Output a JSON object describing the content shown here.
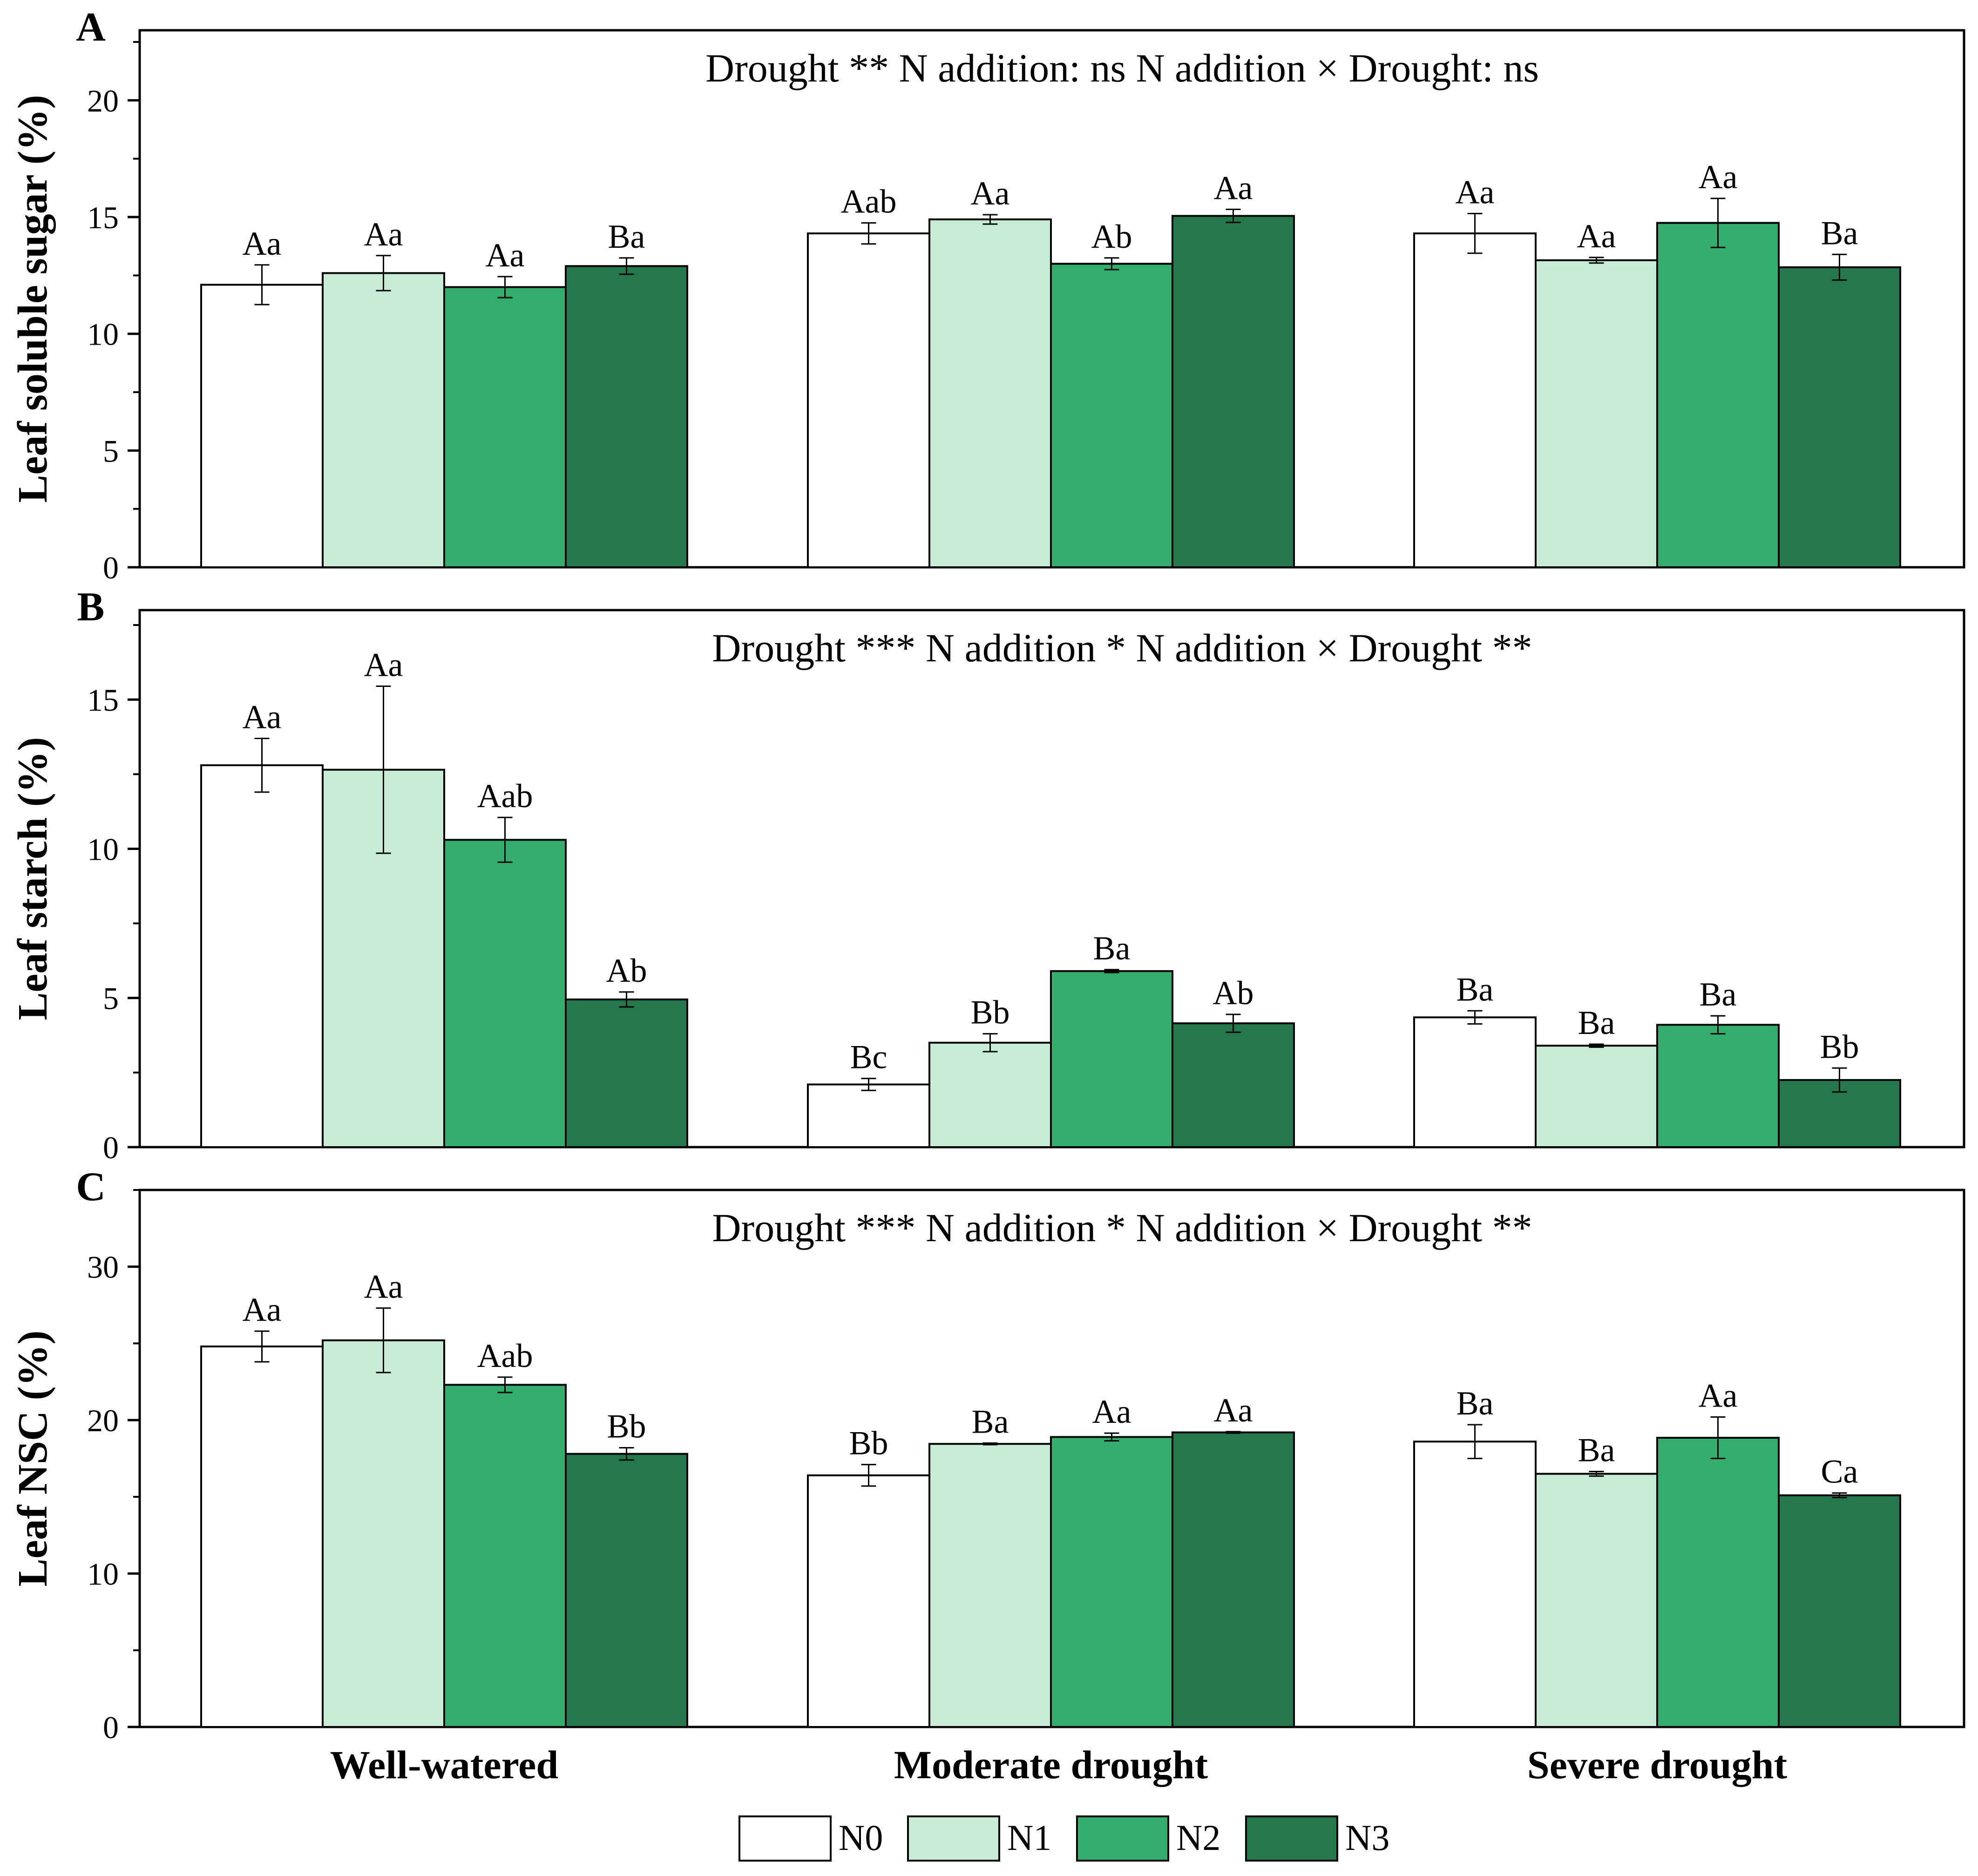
{
  "chart_data": [
    {
      "type": "bar",
      "panel": "A",
      "ylabel": "Leaf soluble sugar (%)",
      "stats": "Drought **    N addition: ns    N addition × Drought: ns",
      "ylim": [
        0,
        23
      ],
      "yticks": [
        0,
        5,
        10,
        15,
        20
      ],
      "ytick_labels": [
        "0",
        "5",
        "10",
        "15",
        "20"
      ],
      "minor_yticks": [
        2.5,
        7.5,
        12.5,
        17.5,
        22.5
      ],
      "categories": [
        "Well-watered",
        "Moderate drought",
        "Severe drought"
      ],
      "series": [
        {
          "name": "N0",
          "values": [
            12.1,
            14.3,
            14.3
          ],
          "errors": [
            0.85,
            0.45,
            0.85
          ],
          "labels": [
            "Aa",
            "Aab",
            "Aa"
          ]
        },
        {
          "name": "N1",
          "values": [
            12.6,
            14.9,
            13.15
          ],
          "errors": [
            0.75,
            0.2,
            0.12
          ],
          "labels": [
            "Aa",
            "Aa",
            "Aa"
          ]
        },
        {
          "name": "N2",
          "values": [
            12.0,
            13.0,
            14.75
          ],
          "errors": [
            0.45,
            0.25,
            1.05
          ],
          "labels": [
            "Aa",
            "Ab",
            "Aa"
          ]
        },
        {
          "name": "N3",
          "values": [
            12.9,
            15.05,
            12.85
          ],
          "errors": [
            0.35,
            0.28,
            0.55
          ],
          "labels": [
            "Ba",
            "Aa",
            "Ba"
          ]
        }
      ]
    },
    {
      "type": "bar",
      "panel": "B",
      "ylabel": "Leaf starch (%)",
      "stats": "Drought ***    N addition *    N addition × Drought **",
      "ylim": [
        0,
        18
      ],
      "yticks": [
        0,
        5,
        10,
        15
      ],
      "ytick_labels": [
        "0",
        "5",
        "10",
        "15"
      ],
      "minor_yticks": [
        2.5,
        7.5,
        12.5,
        17.5
      ],
      "categories": [
        "Well-watered",
        "Moderate drought",
        "Severe drought"
      ],
      "series": [
        {
          "name": "N0",
          "values": [
            12.8,
            2.1,
            4.35
          ],
          "errors": [
            0.9,
            0.2,
            0.22
          ],
          "labels": [
            "Aa",
            "Bc",
            "Ba"
          ]
        },
        {
          "name": "N1",
          "values": [
            12.65,
            3.5,
            3.4
          ],
          "errors": [
            2.8,
            0.3,
            0.05
          ],
          "labels": [
            "Aa",
            "Bb",
            "Ba"
          ]
        },
        {
          "name": "N2",
          "values": [
            10.3,
            5.9,
            4.1
          ],
          "errors": [
            0.75,
            0.05,
            0.3
          ],
          "labels": [
            "Aab",
            "Ba",
            "Ba"
          ]
        },
        {
          "name": "N3",
          "values": [
            4.95,
            4.15,
            2.25
          ],
          "errors": [
            0.25,
            0.3,
            0.4
          ],
          "labels": [
            "Ab",
            "Ab",
            "Bb"
          ]
        }
      ]
    },
    {
      "type": "bar",
      "panel": "C",
      "ylabel": "Leaf NSC (%)",
      "stats": "Drought ***    N addition *    N addition × Drought **",
      "ylim": [
        0,
        35
      ],
      "yticks": [
        0,
        10,
        20,
        30
      ],
      "ytick_labels": [
        "0",
        "10",
        "20",
        "30"
      ],
      "minor_yticks": [
        5,
        15,
        25,
        35
      ],
      "categories": [
        "Well-watered",
        "Moderate drought",
        "Severe drought"
      ],
      "series": [
        {
          "name": "N0",
          "values": [
            24.8,
            16.4,
            18.6
          ],
          "errors": [
            1.0,
            0.7,
            1.1
          ],
          "labels": [
            "Aa",
            "Bb",
            "Ba"
          ]
        },
        {
          "name": "N1",
          "values": [
            25.2,
            18.45,
            16.5
          ],
          "errors": [
            2.1,
            0.05,
            0.15
          ],
          "labels": [
            "Aa",
            "Ba",
            "Ba"
          ]
        },
        {
          "name": "N2",
          "values": [
            22.3,
            18.9,
            18.85
          ],
          "errors": [
            0.5,
            0.25,
            1.35
          ],
          "labels": [
            "Aab",
            "Aa",
            "Aa"
          ]
        },
        {
          "name": "N3",
          "values": [
            17.8,
            19.2,
            15.1
          ],
          "errors": [
            0.4,
            0.05,
            0.15
          ],
          "labels": [
            "Bb",
            "Aa",
            "Ca"
          ]
        }
      ]
    }
  ],
  "legend": {
    "entries": [
      "N0",
      "N1",
      "N2",
      "N3"
    ],
    "colors": [
      "#ffffff",
      "#c6ecd4",
      "#33ad6b",
      "#22784b"
    ]
  }
}
